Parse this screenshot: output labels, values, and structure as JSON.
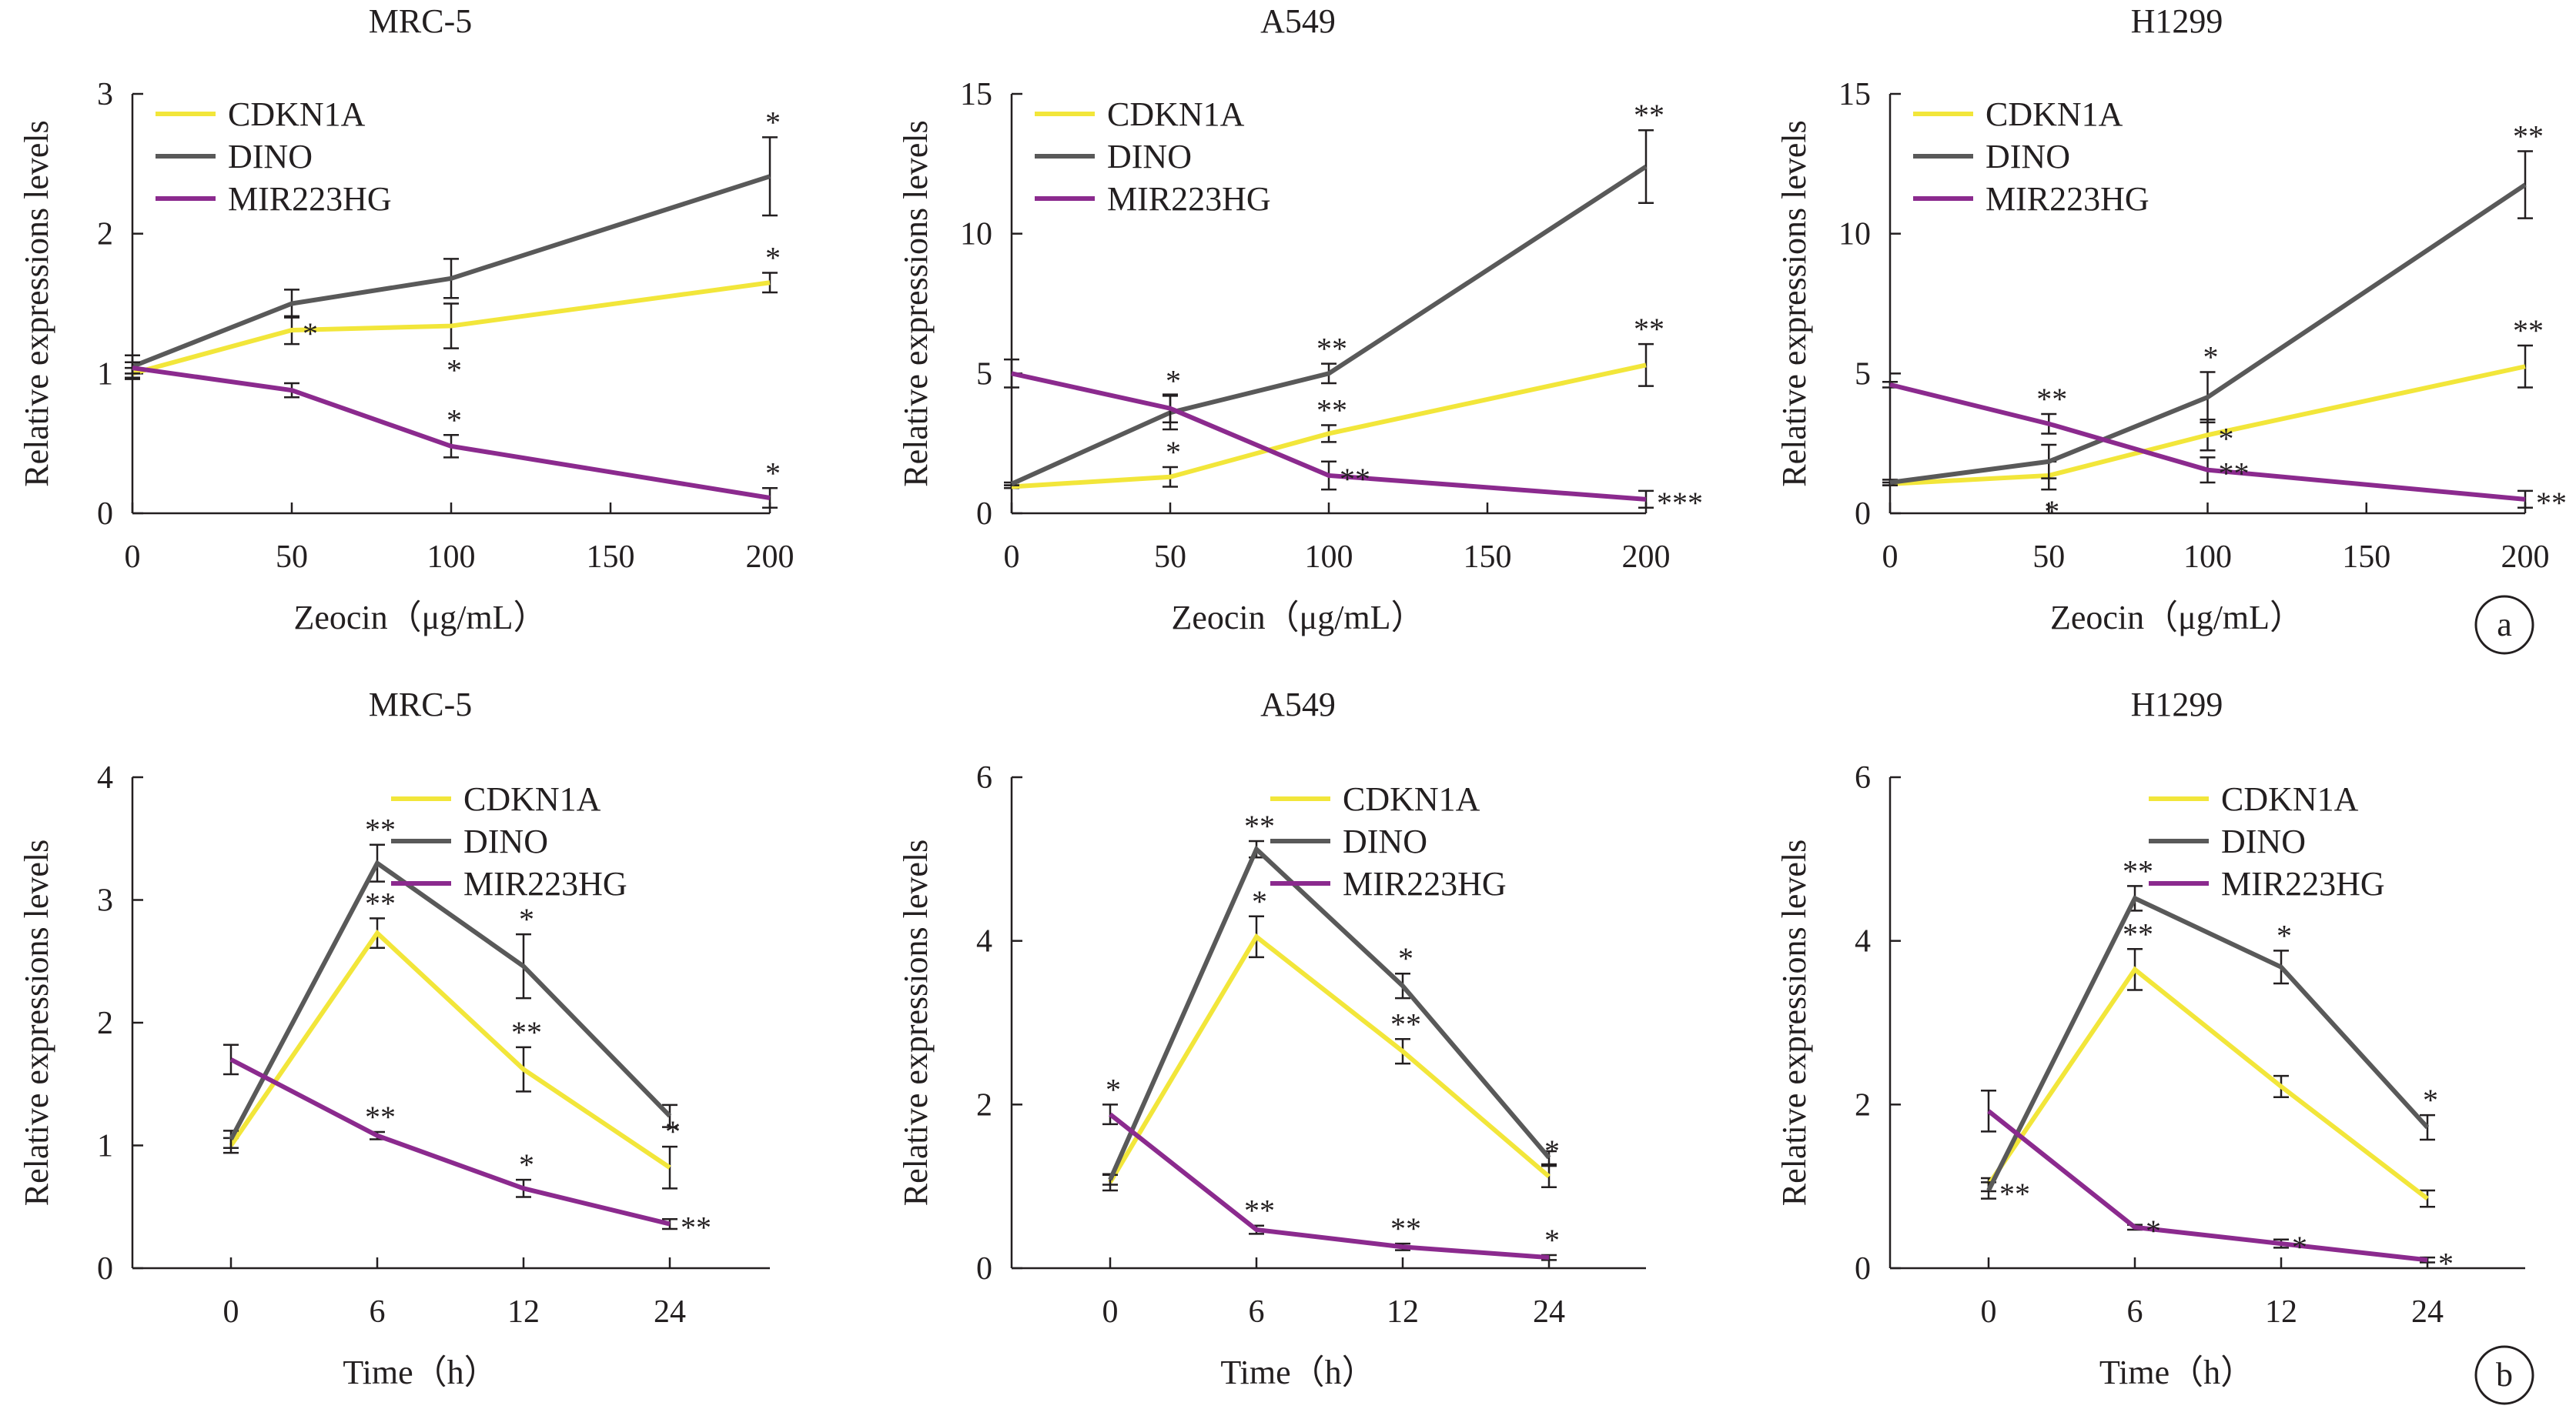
{
  "colors": {
    "CDKN1A": "#f2e63a",
    "DINO": "#595959",
    "MIR223HG": "#8b2a8e",
    "axis": "#231f20"
  },
  "panel_labels": [
    "a",
    "b"
  ],
  "chart_data": [
    {
      "type": "line",
      "title": "MRC-5",
      "xlabel": "Zeocin（μg/mL）",
      "ylabel": "Relative expressions levels",
      "x_scale": "linear",
      "x": [
        0,
        50,
        100,
        200
      ],
      "xticks": [
        0,
        50,
        100,
        150,
        200
      ],
      "xlim": [
        0,
        200
      ],
      "yticks": [
        0,
        1,
        2,
        3
      ],
      "ylim": [
        0,
        3
      ],
      "legend": "top-left",
      "grid": false,
      "series": [
        {
          "name": "CDKN1A",
          "values": [
            1.0,
            1.31,
            1.34,
            1.65
          ],
          "errors": [
            0.04,
            0.1,
            0.16,
            0.07
          ],
          "sig": [
            "",
            "*",
            "*",
            "*"
          ],
          "sig_pos": [
            "",
            "right",
            "below",
            "above"
          ]
        },
        {
          "name": "DINO",
          "values": [
            1.05,
            1.5,
            1.68,
            2.41
          ],
          "errors": [
            0.08,
            0.1,
            0.14,
            0.28
          ],
          "sig": [
            "",
            "",
            "",
            "*"
          ],
          "sig_pos": [
            "",
            "",
            "",
            "above"
          ]
        },
        {
          "name": "MIR223HG",
          "values": [
            1.04,
            0.88,
            0.48,
            0.11
          ],
          "errors": [
            0.04,
            0.05,
            0.08,
            0.07
          ],
          "sig": [
            "",
            "",
            "*",
            "*"
          ],
          "sig_pos": [
            "",
            "",
            "above",
            "above"
          ]
        }
      ]
    },
    {
      "type": "line",
      "title": "A549",
      "xlabel": "Zeocin（μg/mL）",
      "ylabel": "Relative expressions levels",
      "x_scale": "linear",
      "x": [
        0,
        50,
        100,
        200
      ],
      "xticks": [
        0,
        50,
        100,
        150,
        200
      ],
      "xlim": [
        0,
        200
      ],
      "yticks": [
        0,
        5,
        10,
        15
      ],
      "ylim": [
        0,
        15
      ],
      "legend": "top-left",
      "grid": false,
      "series": [
        {
          "name": "CDKN1A",
          "values": [
            0.95,
            1.3,
            2.85,
            5.3
          ],
          "errors": [
            0.05,
            0.35,
            0.3,
            0.75
          ],
          "sig": [
            "",
            "*",
            "**",
            "**"
          ],
          "sig_pos": [
            "",
            "above",
            "above",
            "above"
          ]
        },
        {
          "name": "DINO",
          "values": [
            1.05,
            3.6,
            5.0,
            12.4
          ],
          "errors": [
            0.05,
            0.6,
            0.35,
            1.3
          ],
          "sig": [
            "",
            "*",
            "**",
            "**"
          ],
          "sig_pos": [
            "",
            "above",
            "above",
            "above"
          ]
        },
        {
          "name": "MIR223HG",
          "values": [
            5.0,
            3.75,
            1.35,
            0.5
          ],
          "errors": [
            0.5,
            0.5,
            0.5,
            0.3
          ],
          "sig": [
            "",
            "",
            "**",
            "***"
          ],
          "sig_pos": [
            "",
            "",
            "right",
            "right"
          ]
        }
      ]
    },
    {
      "type": "line",
      "title": "H1299",
      "xlabel": "Zeocin（μg/mL）",
      "ylabel": "Relative expressions levels",
      "x_scale": "linear",
      "x": [
        0,
        50,
        100,
        200
      ],
      "xticks": [
        0,
        50,
        100,
        150,
        200
      ],
      "xlim": [
        0,
        200
      ],
      "yticks": [
        0,
        5,
        10,
        15
      ],
      "ylim": [
        0,
        15
      ],
      "legend": "top-left",
      "grid": false,
      "series": [
        {
          "name": "CDKN1A",
          "values": [
            1.05,
            1.35,
            2.8,
            5.25
          ],
          "errors": [
            0.05,
            0.5,
            0.55,
            0.75
          ],
          "sig": [
            "",
            "*",
            "*",
            "**"
          ],
          "sig_pos": [
            "",
            "below",
            "right",
            "above"
          ]
        },
        {
          "name": "DINO",
          "values": [
            1.1,
            1.85,
            4.15,
            11.75
          ],
          "errors": [
            0.1,
            0.6,
            0.9,
            1.2
          ],
          "sig": [
            "",
            "",
            "*",
            "**"
          ],
          "sig_pos": [
            "",
            "",
            "above",
            "above"
          ]
        },
        {
          "name": "MIR223HG",
          "values": [
            4.6,
            3.2,
            1.55,
            0.5
          ],
          "errors": [
            0.1,
            0.35,
            0.45,
            0.3
          ],
          "sig": [
            "",
            "**",
            "**",
            "**"
          ],
          "sig_pos": [
            "",
            "above",
            "right",
            "right"
          ]
        }
      ]
    },
    {
      "type": "line",
      "title": "MRC-5",
      "xlabel": "Time（h）",
      "ylabel": "Relative expressions levels",
      "x_scale": "categorical",
      "x": [
        0,
        6,
        12,
        24
      ],
      "xticks": [
        0,
        6,
        12,
        24
      ],
      "yticks": [
        0,
        1,
        2,
        3,
        4
      ],
      "ylim": [
        0,
        4
      ],
      "legend": "top-right",
      "grid": false,
      "series": [
        {
          "name": "CDKN1A",
          "values": [
            1.0,
            2.73,
            1.62,
            0.82
          ],
          "errors": [
            0.06,
            0.12,
            0.18,
            0.17
          ],
          "sig": [
            "",
            "**",
            "**",
            "*"
          ],
          "sig_pos": [
            "",
            "above",
            "above",
            "above"
          ]
        },
        {
          "name": "DINO",
          "values": [
            1.05,
            3.3,
            2.46,
            1.24
          ],
          "errors": [
            0.07,
            0.15,
            0.26,
            0.09
          ],
          "sig": [
            "",
            "**",
            "*",
            ""
          ],
          "sig_pos": [
            "",
            "above",
            "above",
            ""
          ]
        },
        {
          "name": "MIR223HG",
          "values": [
            1.7,
            1.08,
            0.65,
            0.36
          ],
          "errors": [
            0.12,
            0.03,
            0.07,
            0.04
          ],
          "sig": [
            "",
            "**",
            "*",
            "**"
          ],
          "sig_pos": [
            "",
            "above",
            "above",
            "right"
          ]
        }
      ]
    },
    {
      "type": "line",
      "title": "A549",
      "xlabel": "Time（h）",
      "ylabel": "Relative expressions levels",
      "x_scale": "categorical",
      "x": [
        0,
        6,
        12,
        24
      ],
      "xticks": [
        0,
        6,
        12,
        24
      ],
      "yticks": [
        0,
        2,
        4,
        6
      ],
      "ylim": [
        0,
        6
      ],
      "legend": "top-right",
      "grid": false,
      "series": [
        {
          "name": "CDKN1A",
          "values": [
            1.05,
            4.05,
            2.65,
            1.12
          ],
          "errors": [
            0.1,
            0.25,
            0.15,
            0.13
          ],
          "sig": [
            "",
            "*",
            "**",
            "*"
          ],
          "sig_pos": [
            "",
            "above",
            "above",
            "above"
          ]
        },
        {
          "name": "DINO",
          "values": [
            1.08,
            5.12,
            3.45,
            1.35
          ],
          "errors": [
            0.06,
            0.1,
            0.15,
            0.08
          ],
          "sig": [
            "",
            "**",
            "*",
            ""
          ],
          "sig_pos": [
            "",
            "above",
            "above",
            ""
          ]
        },
        {
          "name": "MIR223HG",
          "values": [
            1.88,
            0.47,
            0.26,
            0.13
          ],
          "errors": [
            0.12,
            0.05,
            0.04,
            0.03
          ],
          "sig": [
            "*",
            "**",
            "**",
            "*"
          ],
          "sig_pos": [
            "above",
            "above",
            "above",
            "above"
          ]
        }
      ]
    },
    {
      "type": "line",
      "title": "H1299",
      "xlabel": "Time（h）",
      "ylabel": "Relative expressions levels",
      "x_scale": "categorical",
      "x": [
        0,
        6,
        12,
        24
      ],
      "xticks": [
        0,
        6,
        12,
        24
      ],
      "yticks": [
        0,
        2,
        4,
        6
      ],
      "ylim": [
        0,
        6
      ],
      "legend": "top-right",
      "grid": false,
      "series": [
        {
          "name": "CDKN1A",
          "values": [
            1.02,
            3.65,
            2.22,
            0.85
          ],
          "errors": [
            0.08,
            0.25,
            0.13,
            0.1
          ],
          "sig": [
            "",
            "**",
            "",
            ""
          ],
          "sig_pos": [
            "",
            "above",
            "",
            ""
          ]
        },
        {
          "name": "DINO",
          "values": [
            0.95,
            4.52,
            3.68,
            1.72
          ],
          "errors": [
            0.1,
            0.15,
            0.2,
            0.15
          ],
          "sig": [
            "**",
            "**",
            "*",
            "*"
          ],
          "sig_pos": [
            "right",
            "above",
            "above",
            "above"
          ]
        },
        {
          "name": "MIR223HG",
          "values": [
            1.92,
            0.5,
            0.3,
            0.1
          ],
          "errors": [
            0.25,
            0.03,
            0.05,
            0.03
          ],
          "sig": [
            "",
            "*",
            "*",
            "*"
          ],
          "sig_pos": [
            "",
            "right",
            "right",
            "right"
          ]
        }
      ]
    }
  ]
}
